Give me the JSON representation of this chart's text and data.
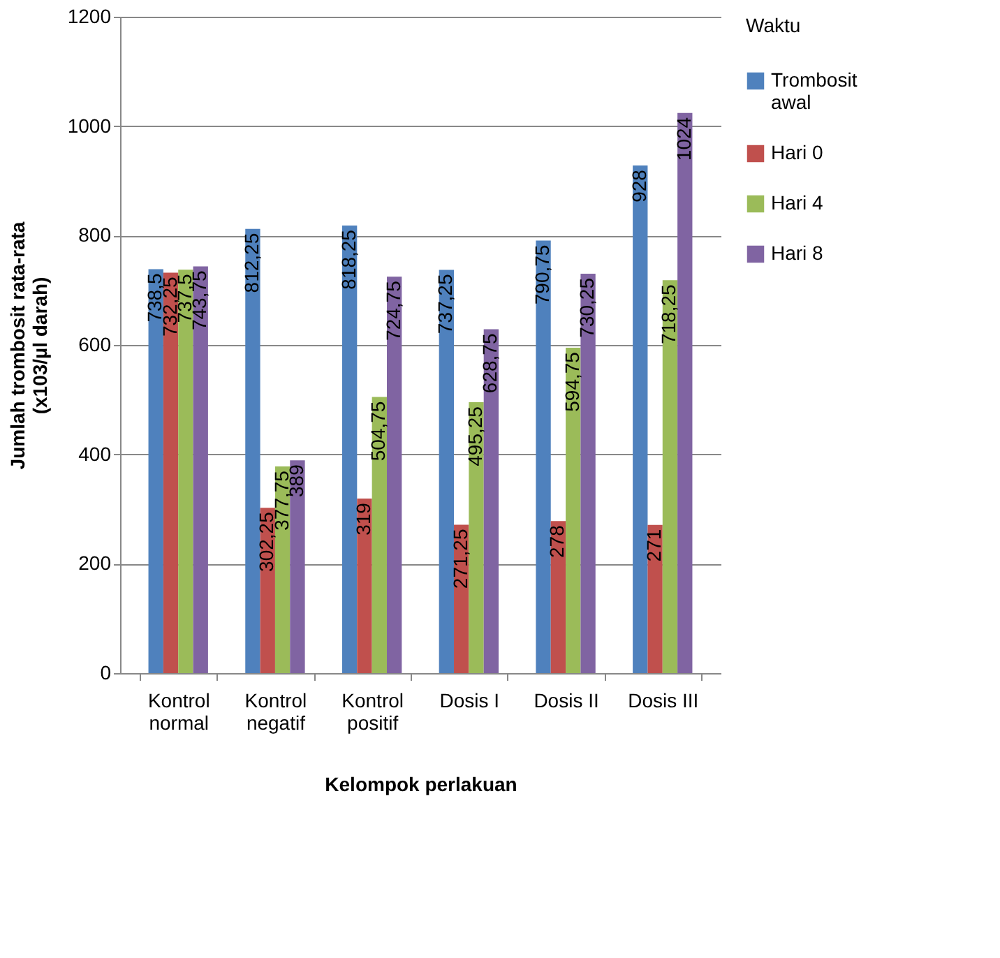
{
  "chart_data": {
    "type": "bar",
    "xlabel": "Kelompok perlakuan",
    "ylabel": "Jumlah trombosit rata-rata (x103/µl darah)",
    "legend_title": "Waktu",
    "legend": "right",
    "grid": "y",
    "ylim": [
      0,
      1200
    ],
    "yticks": [
      0,
      200,
      400,
      600,
      800,
      1000,
      1200
    ],
    "categories": [
      "Kontrol normal",
      "Kontrol negatif",
      "Kontrol positif",
      "Dosis I",
      "Dosis II",
      "Dosis III"
    ],
    "series": [
      {
        "name": "Trombosit awal",
        "color": "#4f81bd",
        "values": [
          738.5,
          812.25,
          818.25,
          737.25,
          790.75,
          928
        ],
        "value_labels": [
          "738,5",
          "812,25",
          "818,25",
          "737,25",
          "790,75",
          "928"
        ]
      },
      {
        "name": "Hari 0",
        "color": "#c0504d",
        "values": [
          732.25,
          302.25,
          319,
          271.25,
          278,
          271
        ],
        "value_labels": [
          "732,25",
          "302,25",
          "319",
          "271,25",
          "278",
          "271"
        ]
      },
      {
        "name": "Hari 4",
        "color": "#9bbb59",
        "values": [
          737.5,
          377.75,
          504.75,
          495.25,
          594.75,
          718.25
        ],
        "value_labels": [
          "737,5",
          "377,75",
          "504,75",
          "495,25",
          "594,75",
          "718,25"
        ]
      },
      {
        "name": "Hari 8",
        "color": "#8064a2",
        "values": [
          743.75,
          389,
          724.75,
          628.75,
          730.25,
          1024
        ],
        "value_labels": [
          "743,75",
          "389",
          "724,75",
          "628,75",
          "730,25",
          "1024"
        ]
      }
    ]
  }
}
